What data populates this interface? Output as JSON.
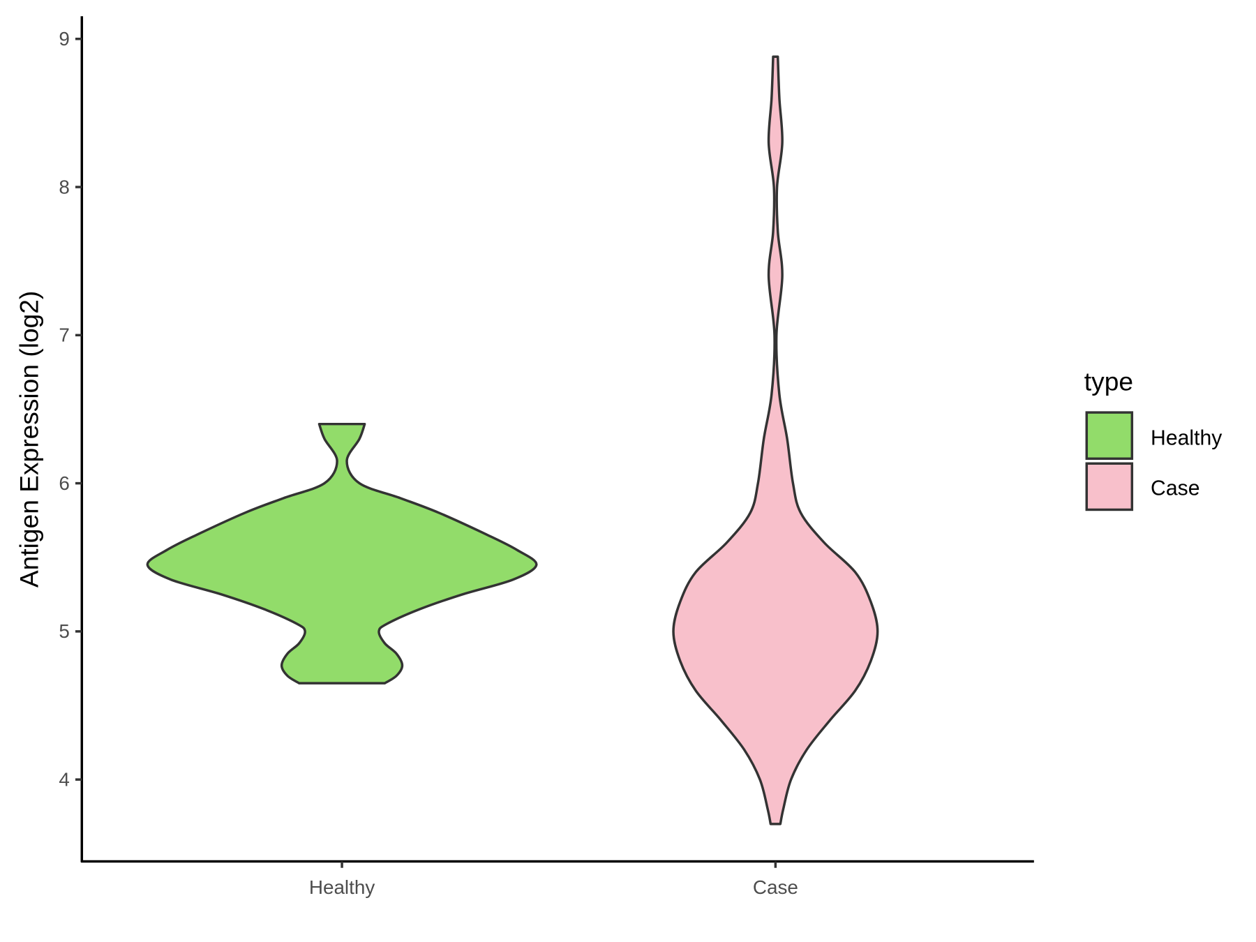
{
  "chart_data": {
    "type": "violin",
    "title": "",
    "xlabel": "",
    "ylabel": "Antigen Expression (log2)",
    "categories": [
      "Healthy",
      "Case"
    ],
    "ylim": [
      3.45,
      9.15
    ],
    "yticks": [
      4,
      5,
      6,
      7,
      8,
      9
    ],
    "grid": false,
    "legend": {
      "title": "type",
      "position": "right",
      "entries": [
        "Healthy",
        "Case"
      ]
    },
    "colors": {
      "Healthy": "#92dc6a",
      "Case": "#f8c0cb",
      "outline": "#333333"
    },
    "series": [
      {
        "name": "Healthy",
        "density_profile": [
          [
            6.4,
            0.117
          ],
          [
            6.3,
            0.09
          ],
          [
            6.15,
            0.025
          ],
          [
            6.0,
            0.09
          ],
          [
            5.9,
            0.3
          ],
          [
            5.8,
            0.5
          ],
          [
            5.65,
            0.75
          ],
          [
            5.55,
            0.9
          ],
          [
            5.45,
            1.0
          ],
          [
            5.35,
            0.88
          ],
          [
            5.25,
            0.62
          ],
          [
            5.15,
            0.4
          ],
          [
            5.05,
            0.23
          ],
          [
            5.0,
            0.19
          ],
          [
            4.92,
            0.22
          ],
          [
            4.85,
            0.28
          ],
          [
            4.77,
            0.31
          ],
          [
            4.7,
            0.28
          ],
          [
            4.65,
            0.22
          ]
        ]
      },
      {
        "name": "Case",
        "density_profile": [
          [
            8.88,
            0.012
          ],
          [
            8.6,
            0.02
          ],
          [
            8.3,
            0.035
          ],
          [
            8.0,
            0.008
          ],
          [
            7.7,
            0.012
          ],
          [
            7.4,
            0.035
          ],
          [
            7.0,
            0.005
          ],
          [
            6.6,
            0.02
          ],
          [
            6.3,
            0.06
          ],
          [
            6.0,
            0.09
          ],
          [
            5.8,
            0.13
          ],
          [
            5.6,
            0.25
          ],
          [
            5.4,
            0.41
          ],
          [
            5.2,
            0.49
          ],
          [
            5.0,
            0.525
          ],
          [
            4.8,
            0.49
          ],
          [
            4.6,
            0.41
          ],
          [
            4.4,
            0.28
          ],
          [
            4.2,
            0.16
          ],
          [
            4.0,
            0.08
          ],
          [
            3.8,
            0.04
          ],
          [
            3.7,
            0.025
          ]
        ]
      }
    ]
  }
}
